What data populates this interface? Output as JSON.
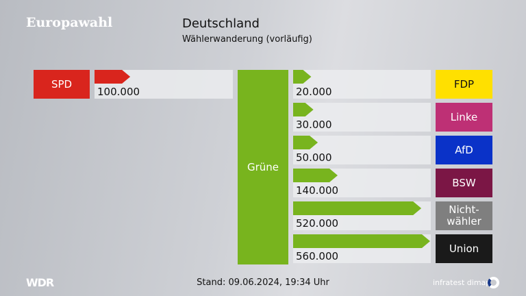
{
  "header": {
    "brand": "Europawahl",
    "title": "Deutschland",
    "subtitle": "Wählerwanderung (vorläufig)"
  },
  "footer": {
    "stand": "Stand: 09.06.2024, 19:34 Uhr",
    "logo_left": "WDR",
    "logo_right": "infratest dimap"
  },
  "chart_data": {
    "type": "bar",
    "title": "Deutschland",
    "subtitle": "Wählerwanderung (vorläufig)",
    "center": {
      "label": "Grüne",
      "color": "#78b41e"
    },
    "left": [
      {
        "party": "SPD",
        "value": 100000,
        "value_label": "100.000",
        "color": "#d9251d",
        "arrow_color": "#d9251d"
      }
    ],
    "right": [
      {
        "party": "FDP",
        "value": 20000,
        "value_label": "20.000",
        "color": "#ffe000",
        "text_color": "#111111"
      },
      {
        "party": "Linke",
        "value": 30000,
        "value_label": "30.000",
        "color": "#be3075",
        "text_color": "#ffffff"
      },
      {
        "party": "AfD",
        "value": 50000,
        "value_label": "50.000",
        "color": "#0a32c8",
        "text_color": "#ffffff"
      },
      {
        "party": "BSW",
        "value": 140000,
        "value_label": "140.000",
        "color": "#7b1645",
        "text_color": "#ffffff"
      },
      {
        "party": "Nicht-\nwähler",
        "value": 520000,
        "value_label": "520.000",
        "color": "#7f7f7f",
        "text_color": "#ffffff"
      },
      {
        "party": "Union",
        "value": 560000,
        "value_label": "560.000",
        "color": "#1a1a1a",
        "text_color": "#ffffff"
      }
    ],
    "max_value": 560000
  }
}
